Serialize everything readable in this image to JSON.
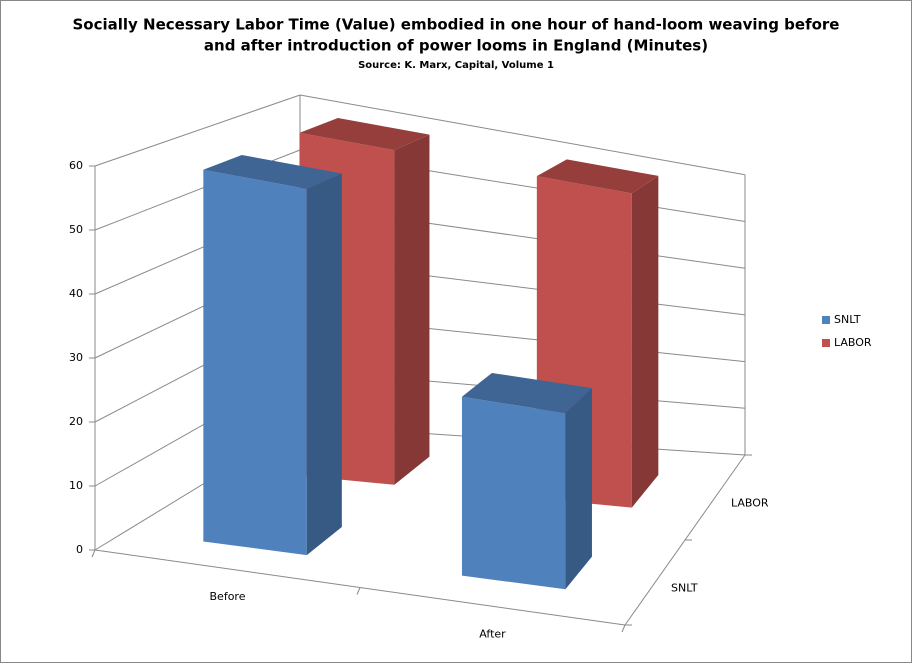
{
  "chart_data": {
    "type": "bar3d",
    "title": [
      "Socially Necessary Labor Time (Value) embodied in one hour of hand-loom weaving before",
      "and after introduction of power looms in England (Minutes)"
    ],
    "subtitle": "Source: K. Marx, Capital, Volume 1",
    "categories": [
      "Before",
      "After"
    ],
    "series": [
      {
        "name": "SNLT",
        "color": "#4f81bd",
        "values": [
          60,
          30
        ]
      },
      {
        "name": "LABOR",
        "color": "#c0504d",
        "values": [
          60,
          60
        ]
      }
    ],
    "ylim": [
      0,
      60
    ],
    "yticks": [
      0,
      10,
      20,
      30,
      40,
      50,
      60
    ],
    "grid": true,
    "legend": "right"
  }
}
